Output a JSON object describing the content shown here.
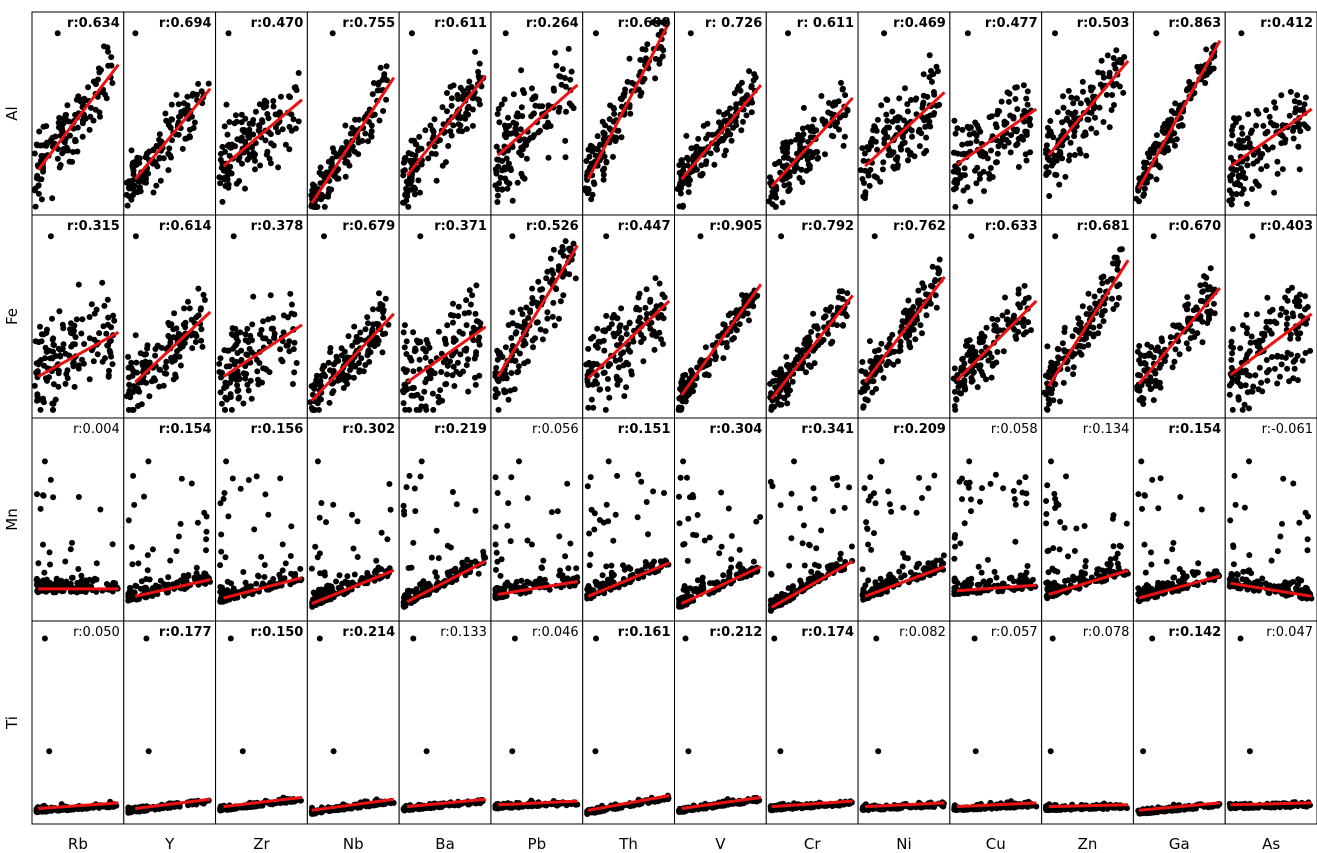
{
  "chart_data": {
    "type": "scatter",
    "layout": "matrix",
    "rows": [
      "Al",
      "Fe",
      "Mn",
      "Ti"
    ],
    "columns": [
      "Rb",
      "Y",
      "Zr",
      "Nb",
      "Ba",
      "Pb",
      "Th",
      "V",
      "Cr",
      "Ni",
      "Cu",
      "Zn",
      "Ga",
      "As"
    ],
    "correlations": [
      [
        "r:0.634",
        "r:0.694",
        "r:0.470",
        "r:0.755",
        "r:0.611",
        "r:0.264",
        "r:0.688",
        "r: 0.726",
        "r: 0.611",
        "r:0.469",
        "r:0.477",
        "r:0.503",
        "r:0.863",
        "r:0.412"
      ],
      [
        "r:0.315",
        "r:0.614",
        "r:0.378",
        "r:0.679",
        "r:0.371",
        "r:0.526",
        "r:0.447",
        "r:0.905",
        "r:0.792",
        "r:0.762",
        "r:0.633",
        "r:0.681",
        "r:0.670",
        "r:0.403"
      ],
      [
        "r:0.004",
        "r:0.154",
        "r:0.156",
        "r:0.302",
        "r:0.219",
        "r:0.056",
        "r:0.151",
        "r:0.304",
        "r:0.341",
        "r:0.209",
        "r:0.058",
        "r:0.134",
        "r:0.154",
        "r:-0.061"
      ],
      [
        "r:0.050",
        "r:0.177",
        "r:0.150",
        "r:0.214",
        "r:0.133",
        "r:0.046",
        "r:0.161",
        "r:0.212",
        "r:0.174",
        "r:0.082",
        "r:0.057",
        "r:0.078",
        "r:0.142",
        "r:0.047"
      ]
    ],
    "bold": [
      [
        true,
        true,
        true,
        true,
        true,
        true,
        true,
        true,
        true,
        true,
        true,
        true,
        true,
        true
      ],
      [
        true,
        true,
        true,
        true,
        true,
        true,
        true,
        true,
        true,
        true,
        true,
        true,
        true,
        true
      ],
      [
        false,
        true,
        true,
        true,
        true,
        false,
        true,
        true,
        true,
        true,
        false,
        false,
        true,
        false
      ],
      [
        false,
        true,
        true,
        true,
        false,
        false,
        true,
        true,
        true,
        false,
        false,
        false,
        true,
        false
      ]
    ],
    "regression_fit": [
      [
        [
          0.04,
          0.2,
          0.97,
          0.77
        ],
        [
          0.1,
          0.15,
          0.97,
          0.64
        ],
        [
          0.06,
          0.22,
          0.97,
          0.58
        ],
        [
          0.02,
          0.02,
          0.97,
          0.7
        ],
        [
          0.06,
          0.17,
          0.97,
          0.71
        ],
        [
          0.05,
          0.28,
          0.97,
          0.66
        ],
        [
          0.03,
          0.15,
          0.97,
          1.0
        ],
        [
          0.05,
          0.15,
          0.97,
          0.66
        ],
        [
          0.03,
          0.11,
          0.97,
          0.59
        ],
        [
          0.05,
          0.22,
          0.97,
          0.62
        ],
        [
          0.05,
          0.23,
          0.97,
          0.53
        ],
        [
          0.05,
          0.28,
          0.97,
          0.79
        ],
        [
          0.03,
          0.1,
          0.97,
          0.9
        ],
        [
          0.03,
          0.22,
          0.97,
          0.53
        ]
      ],
      [
        [
          0.04,
          0.18,
          0.97,
          0.42
        ],
        [
          0.1,
          0.15,
          0.97,
          0.53
        ],
        [
          0.06,
          0.18,
          0.97,
          0.46
        ],
        [
          0.02,
          0.05,
          0.97,
          0.52
        ],
        [
          0.06,
          0.15,
          0.97,
          0.45
        ],
        [
          0.05,
          0.18,
          0.97,
          0.89
        ],
        [
          0.03,
          0.17,
          0.97,
          0.59
        ],
        [
          0.05,
          0.08,
          0.97,
          0.68
        ],
        [
          0.03,
          0.06,
          0.97,
          0.62
        ],
        [
          0.05,
          0.15,
          0.97,
          0.72
        ],
        [
          0.05,
          0.16,
          0.97,
          0.59
        ],
        [
          0.05,
          0.13,
          0.97,
          0.81
        ],
        [
          0.03,
          0.14,
          0.97,
          0.66
        ],
        [
          0.03,
          0.19,
          0.97,
          0.52
        ]
      ],
      [
        [
          0.04,
          0.13,
          0.97,
          0.13
        ],
        [
          0.1,
          0.09,
          0.97,
          0.18
        ],
        [
          0.06,
          0.08,
          0.97,
          0.19
        ],
        [
          0.02,
          0.05,
          0.97,
          0.23
        ],
        [
          0.06,
          0.06,
          0.97,
          0.28
        ],
        [
          0.05,
          0.1,
          0.97,
          0.17
        ],
        [
          0.03,
          0.09,
          0.97,
          0.27
        ],
        [
          0.05,
          0.05,
          0.97,
          0.25
        ],
        [
          0.03,
          0.03,
          0.97,
          0.28
        ],
        [
          0.05,
          0.09,
          0.97,
          0.25
        ],
        [
          0.05,
          0.12,
          0.97,
          0.15
        ],
        [
          0.05,
          0.1,
          0.97,
          0.23
        ],
        [
          0.03,
          0.08,
          0.97,
          0.2
        ],
        [
          0.03,
          0.16,
          0.97,
          0.09
        ]
      ],
      [
        [
          0.04,
          0.04,
          0.97,
          0.07
        ],
        [
          0.1,
          0.04,
          0.97,
          0.09
        ],
        [
          0.06,
          0.05,
          0.97,
          0.1
        ],
        [
          0.02,
          0.03,
          0.97,
          0.09
        ],
        [
          0.06,
          0.05,
          0.97,
          0.09
        ],
        [
          0.05,
          0.06,
          0.97,
          0.08
        ],
        [
          0.03,
          0.03,
          0.97,
          0.11
        ],
        [
          0.05,
          0.04,
          0.97,
          0.1
        ],
        [
          0.03,
          0.05,
          0.97,
          0.08
        ],
        [
          0.05,
          0.05,
          0.97,
          0.07
        ],
        [
          0.05,
          0.05,
          0.97,
          0.07
        ],
        [
          0.05,
          0.05,
          0.97,
          0.06
        ],
        [
          0.03,
          0.03,
          0.97,
          0.07
        ],
        [
          0.03,
          0.06,
          0.97,
          0.07
        ]
      ]
    ],
    "point_color": "#000000",
    "line_color": "#ee1111",
    "points_per_panel": 140,
    "grid": false,
    "legend": "none"
  }
}
